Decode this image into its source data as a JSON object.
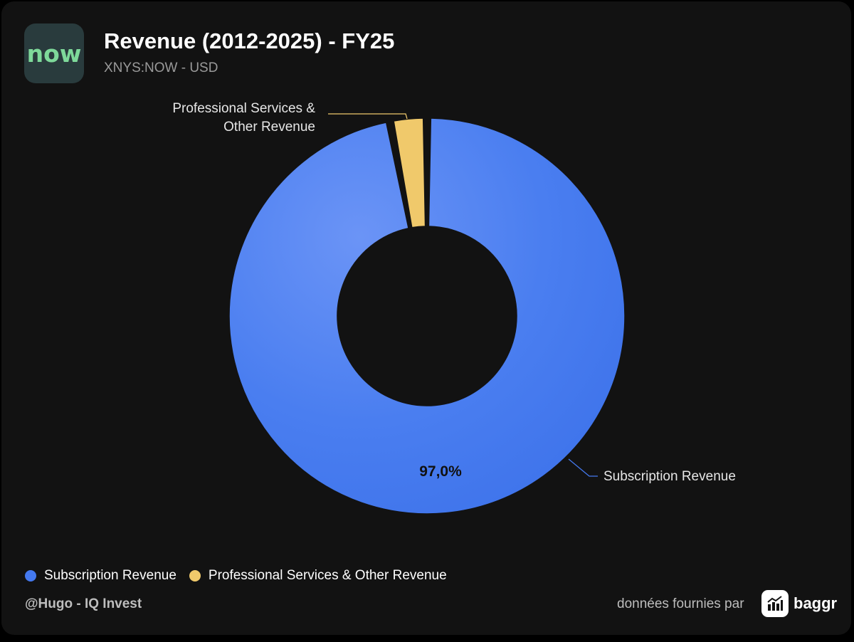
{
  "header": {
    "logo_text": "now",
    "title": "Revenue (2012-2025) - FY25",
    "subtitle": "XNYS:NOW - USD"
  },
  "chart_data": {
    "type": "pie",
    "title": "Revenue (2012-2025) - FY25",
    "subtitle": "XNYS:NOW - USD",
    "donut": true,
    "legend_position": "bottom-left",
    "slices": [
      {
        "label": "Subscription Revenue",
        "value": 97.0,
        "display": "97,0%",
        "color": "#4479ef",
        "show_value_label": true
      },
      {
        "label": "Professional Services & Other Revenue",
        "value": 3.0,
        "display": "",
        "color": "#f0c96b",
        "show_value_label": false
      }
    ]
  },
  "callouts": {
    "subscription": "Subscription Revenue",
    "professional_line1": "Professional Services &",
    "professional_line2": "Other Revenue"
  },
  "legend": [
    {
      "label": "Subscription Revenue",
      "color": "#4479ef"
    },
    {
      "label": "Professional Services & Other Revenue",
      "color": "#f0c96b"
    }
  ],
  "footer": {
    "credit": "@Hugo - IQ Invest",
    "provided_by": "données fournies par",
    "brand": "baggr",
    "brand_icon": "bar-chart-arrow-icon"
  }
}
